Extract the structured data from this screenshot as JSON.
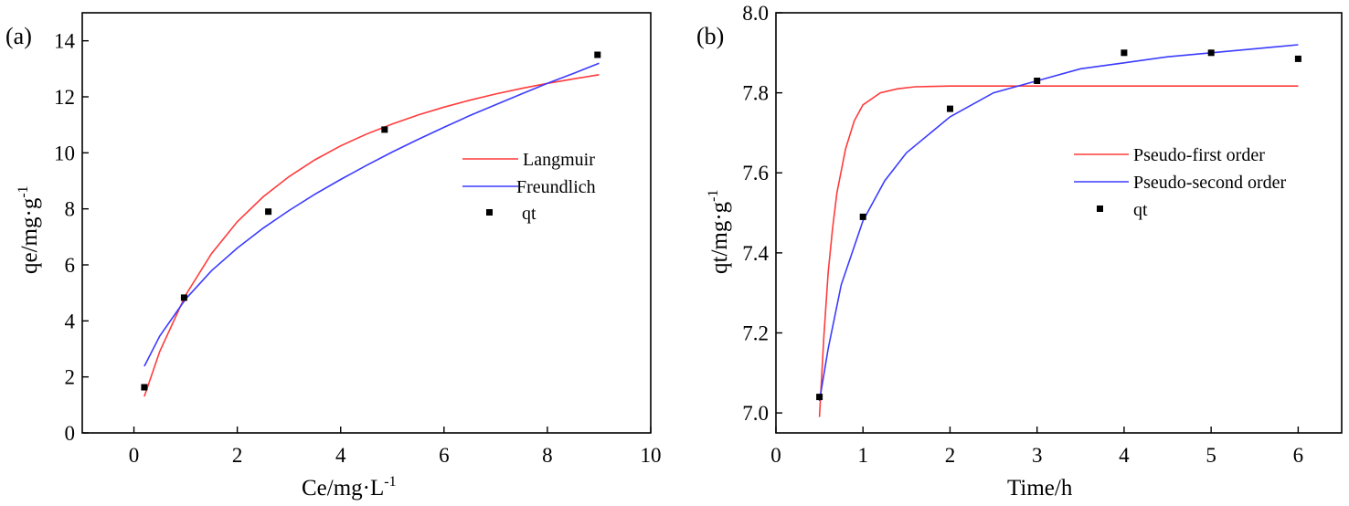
{
  "chart_data": [
    {
      "type": "scatter",
      "panel_label": "(a)",
      "xlabel": "Ce/mg·L",
      "xlabel_sup": "-1",
      "ylabel": "qe/mg·g",
      "ylabel_sup": "-1",
      "xlim": [
        -1,
        10
      ],
      "ylim": [
        0,
        15
      ],
      "xticks": [
        0,
        2,
        4,
        6,
        8,
        10
      ],
      "yticks": [
        0,
        2,
        4,
        6,
        8,
        10,
        12,
        14
      ],
      "grid": false,
      "legend_position": "right",
      "series": [
        {
          "name": "Langmuir",
          "kind": "line",
          "color": "#ff3b3b",
          "x": [
            0.2,
            0.5,
            1,
            1.5,
            2,
            2.5,
            3,
            3.5,
            4,
            4.5,
            5,
            5.5,
            6,
            6.5,
            7,
            7.5,
            8,
            8.5,
            9
          ],
          "y": [
            1.3,
            2.91,
            4.92,
            6.4,
            7.54,
            8.43,
            9.15,
            9.75,
            10.25,
            10.67,
            11.03,
            11.35,
            11.63,
            11.88,
            12.1,
            12.3,
            12.48,
            12.64,
            12.79
          ]
        },
        {
          "name": "Freundlich",
          "kind": "line",
          "color": "#3b3bff",
          "x": [
            0.2,
            0.5,
            1,
            1.5,
            2,
            2.5,
            3,
            3.5,
            4,
            4.5,
            5,
            5.5,
            6,
            6.5,
            7,
            7.5,
            8,
            8.5,
            9
          ],
          "y": [
            2.38,
            3.46,
            4.78,
            5.79,
            6.6,
            7.31,
            7.94,
            8.52,
            9.05,
            9.55,
            10.03,
            10.48,
            10.91,
            11.33,
            11.72,
            12.1,
            12.48,
            12.83,
            13.2
          ]
        },
        {
          "name": "qt",
          "kind": "scatter",
          "color": "#000000",
          "x": [
            0.2,
            0.97,
            2.6,
            4.85,
            8.97
          ],
          "y": [
            1.63,
            4.83,
            7.9,
            10.83,
            13.5
          ]
        }
      ]
    },
    {
      "type": "scatter",
      "panel_label": "(b)",
      "xlabel": "Time/h",
      "ylabel": "qt/mg·g",
      "ylabel_sup": "-1",
      "xlim": [
        0,
        6.5
      ],
      "ylim": [
        6.95,
        8.0
      ],
      "xticks": [
        0,
        1,
        2,
        3,
        4,
        5,
        6
      ],
      "yticks": [
        7.0,
        7.2,
        7.4,
        7.6,
        7.8,
        8.0
      ],
      "grid": false,
      "legend_position": "right",
      "series": [
        {
          "name": "Pseudo-first order",
          "kind": "line",
          "color": "#ff3b3b",
          "x": [
            0.5,
            0.55,
            0.6,
            0.65,
            0.7,
            0.8,
            0.9,
            1.0,
            1.2,
            1.4,
            1.6,
            2.0,
            2.5,
            3,
            4,
            5,
            6
          ],
          "y": [
            6.99,
            7.19,
            7.35,
            7.46,
            7.55,
            7.66,
            7.73,
            7.77,
            7.8,
            7.81,
            7.815,
            7.817,
            7.817,
            7.817,
            7.817,
            7.817,
            7.817
          ]
        },
        {
          "name": "Pseudo-second order",
          "kind": "line",
          "color": "#3b3bff",
          "x": [
            0.5,
            0.6,
            0.75,
            1.0,
            1.25,
            1.5,
            2.0,
            2.5,
            3.0,
            3.5,
            4.0,
            4.5,
            5.0,
            5.5,
            6.0
          ],
          "y": [
            7.03,
            7.16,
            7.32,
            7.48,
            7.58,
            7.65,
            7.74,
            7.8,
            7.83,
            7.86,
            7.875,
            7.89,
            7.9,
            7.91,
            7.92
          ]
        },
        {
          "name": "qt",
          "kind": "scatter",
          "color": "#000000",
          "x": [
            0.5,
            1,
            2,
            3,
            4,
            5,
            6
          ],
          "y": [
            7.04,
            7.49,
            7.76,
            7.83,
            7.9,
            7.9,
            7.885
          ]
        }
      ]
    }
  ]
}
